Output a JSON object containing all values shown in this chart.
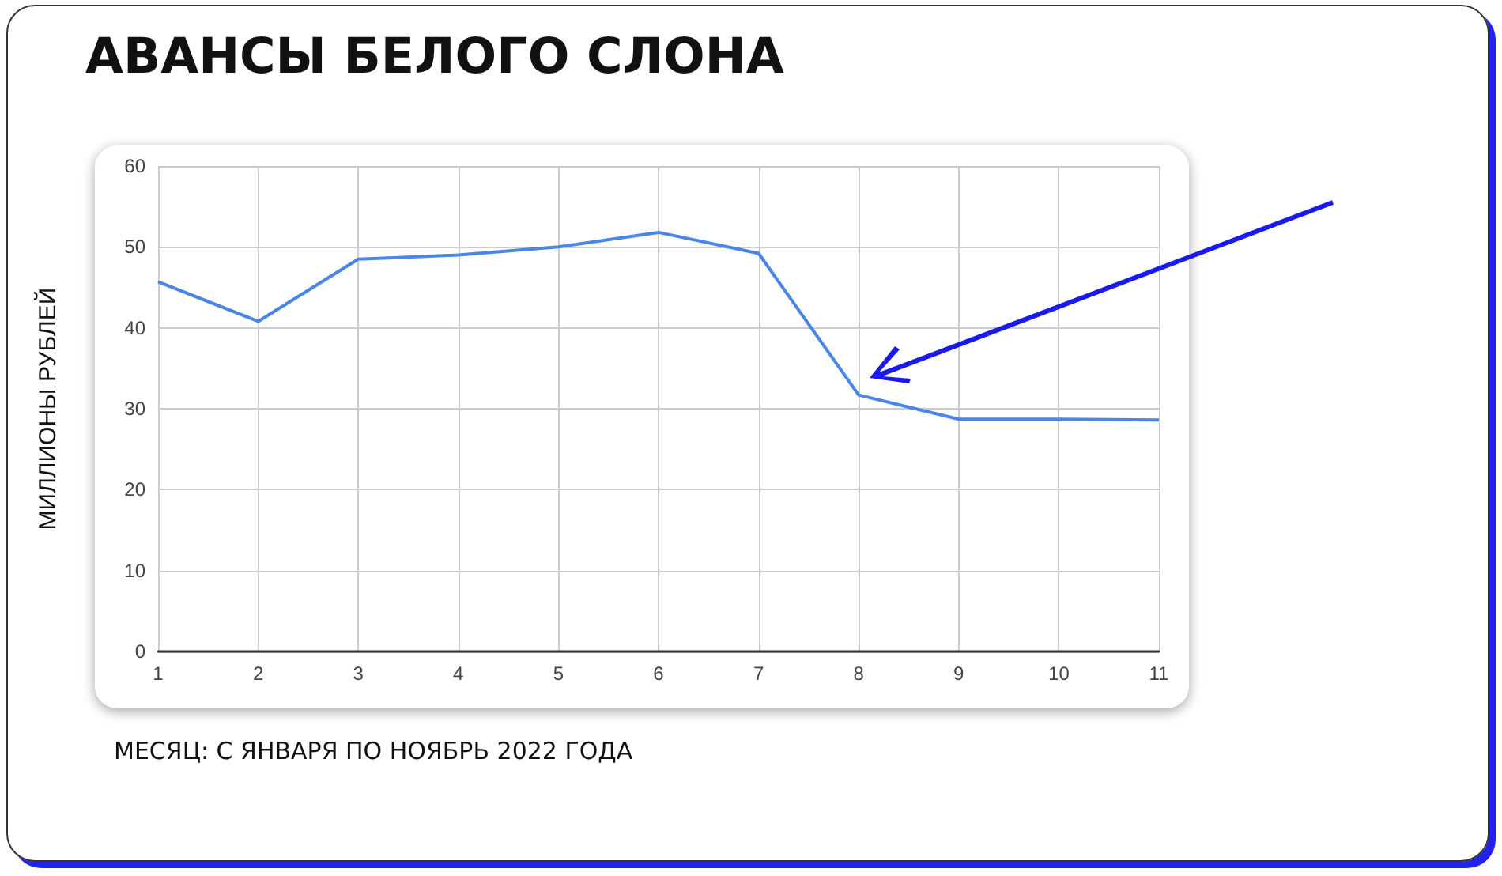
{
  "chart_data": {
    "type": "line",
    "title": "АВАНСЫ БЕЛОГО СЛОНА",
    "xlabel": "МЕСЯЦ: С ЯНВАРЯ ПО НОЯБРЬ 2022 ГОДА",
    "ylabel": "МИЛЛИОНЫ РУБЛЕЙ",
    "x": [
      1,
      2,
      3,
      4,
      5,
      6,
      7,
      8,
      9,
      10,
      11
    ],
    "series": [
      {
        "color": "#4a86e8",
        "values": [
          45.7,
          40.8,
          48.5,
          49.0,
          50.0,
          51.8,
          49.2,
          31.7,
          28.7,
          28.7,
          28.6
        ]
      }
    ],
    "xlim": [
      1,
      11
    ],
    "xticks": [
      1,
      2,
      3,
      4,
      5,
      6,
      7,
      8,
      9,
      10,
      11
    ],
    "ylim": [
      0,
      60
    ],
    "yticks": [
      0,
      10,
      20,
      30,
      40,
      50,
      60
    ],
    "grid": true,
    "marker": "none",
    "line_style": "solid"
  }
}
